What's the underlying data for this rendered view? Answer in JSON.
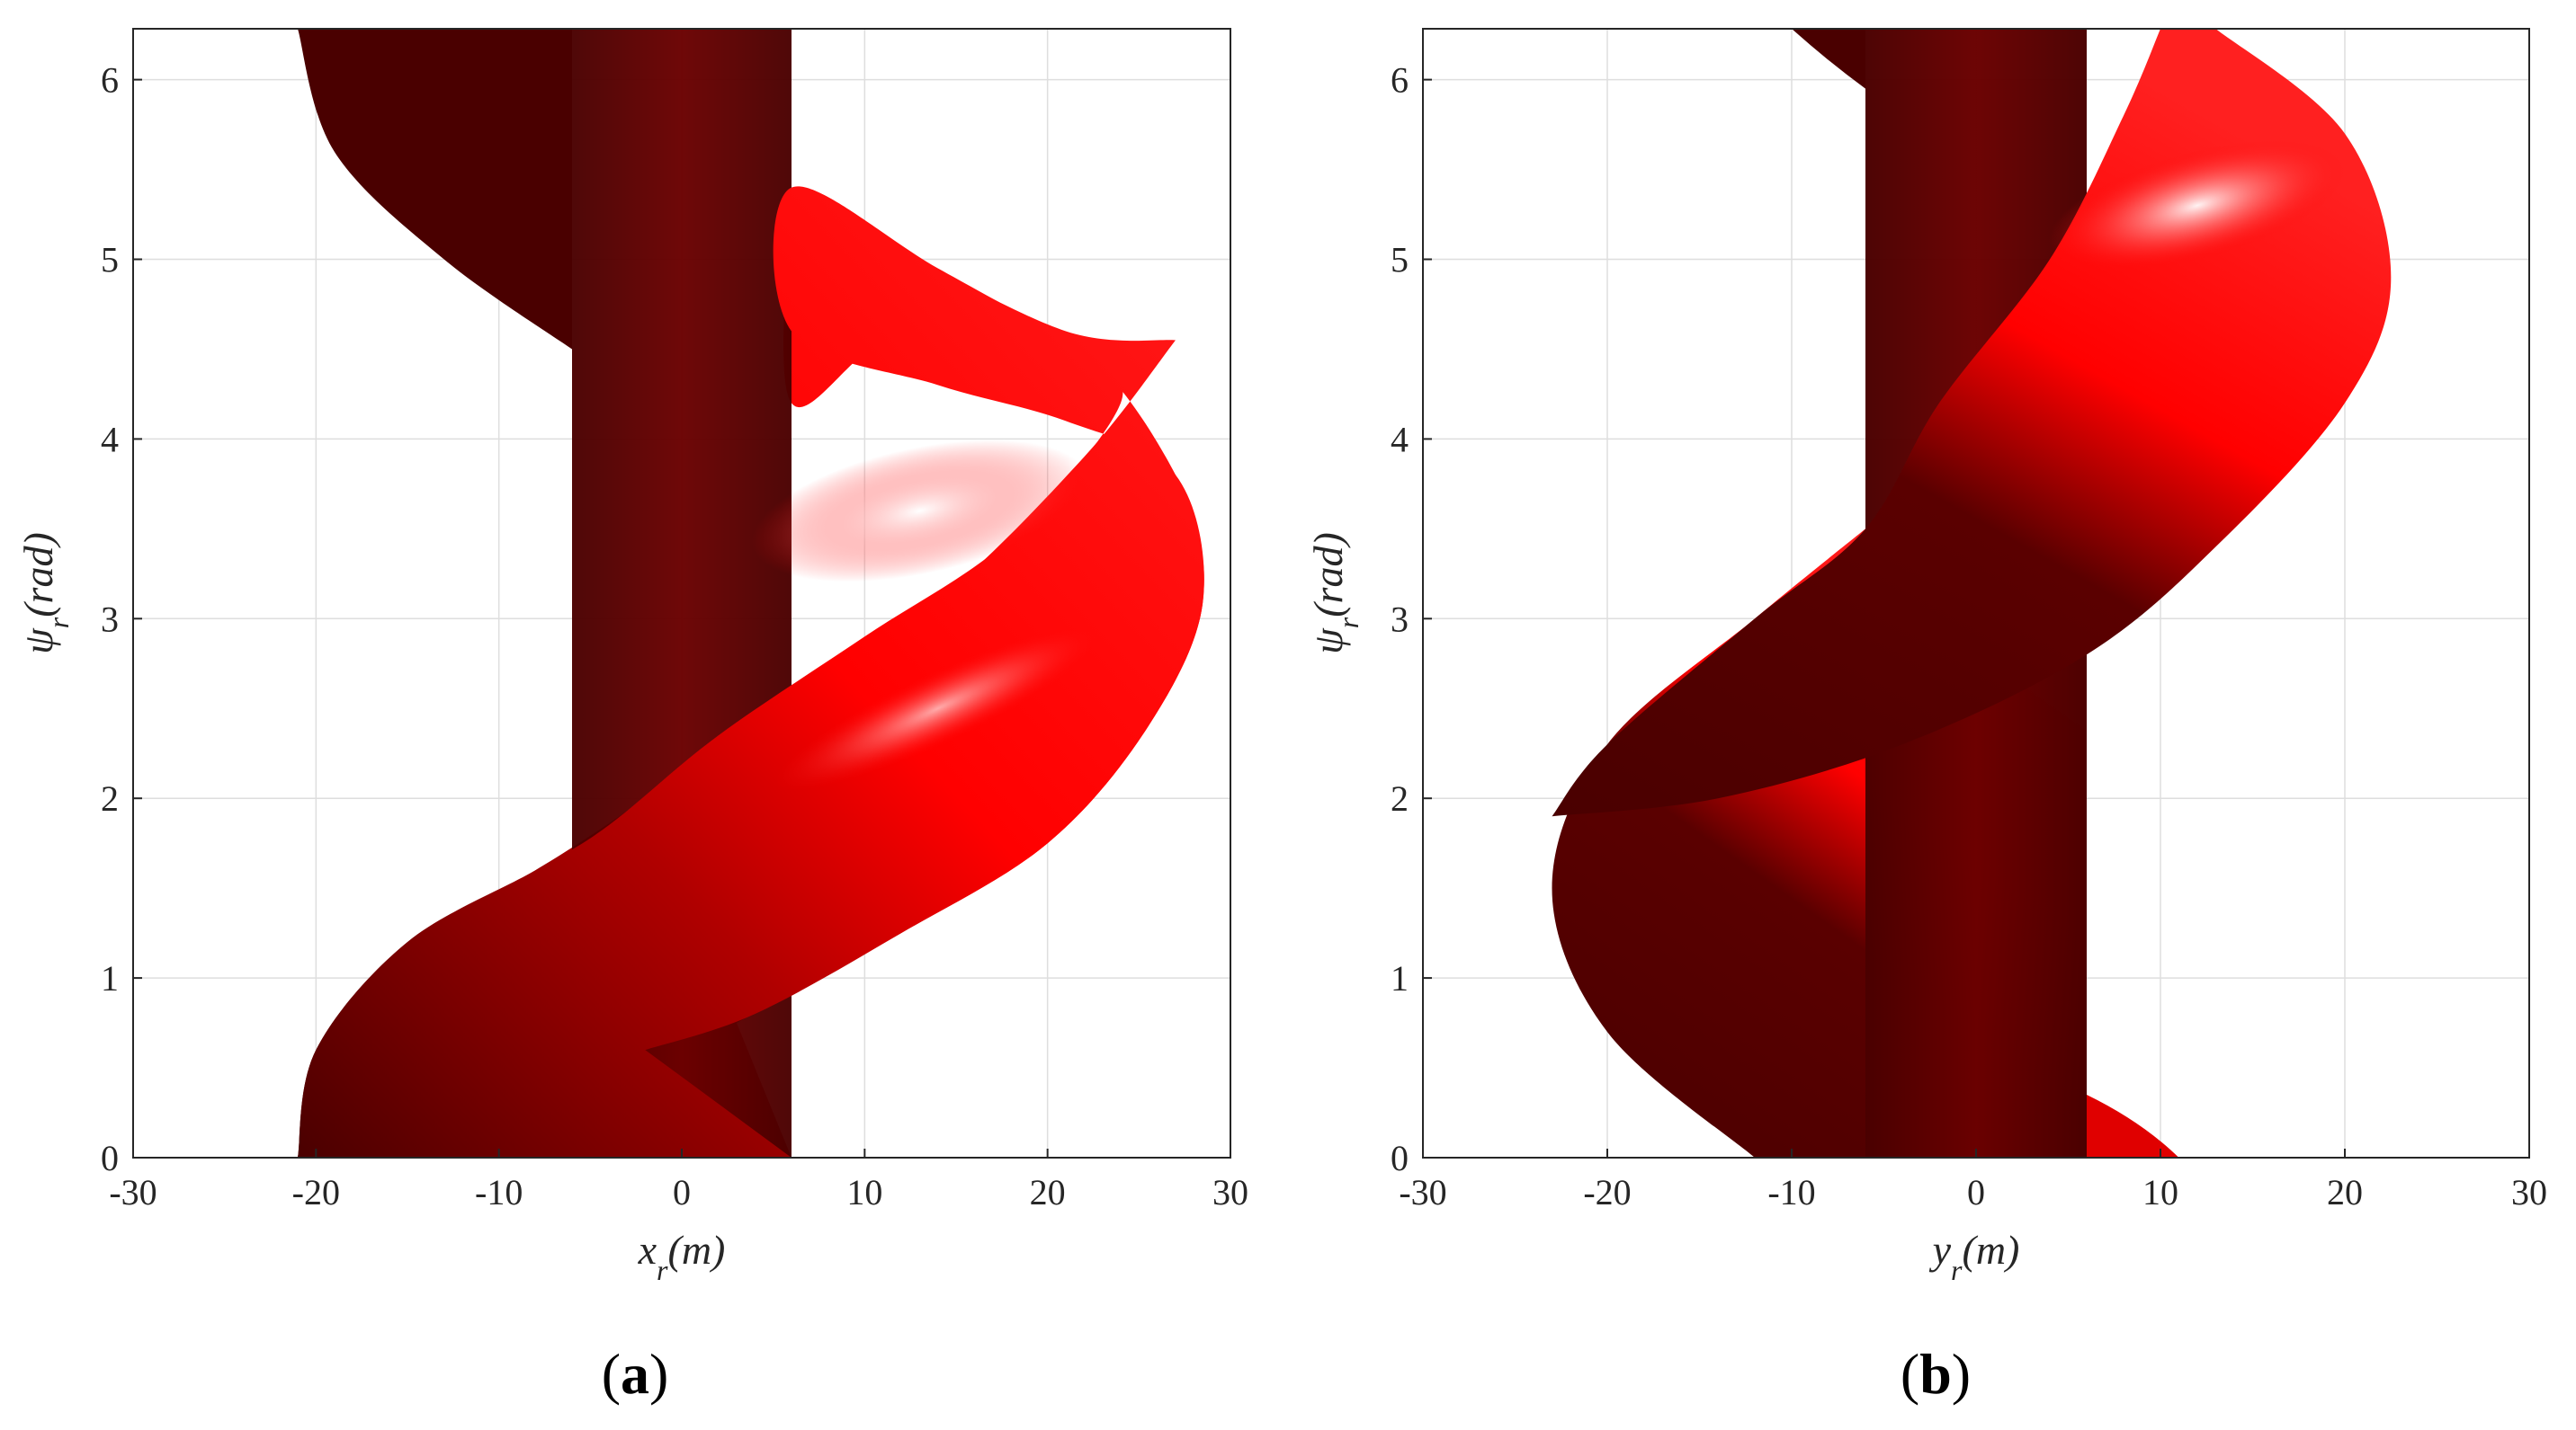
{
  "chart_data": [
    {
      "type": "area",
      "caption": "a",
      "xlabel": "x_r(m)",
      "ylabel": "ψ_r(rad)",
      "xlim": [
        -30,
        30
      ],
      "ylim": [
        0,
        6.2832
      ],
      "xticks": [
        -30,
        -20,
        -10,
        0,
        10,
        20,
        30
      ],
      "yticks": [
        0,
        1,
        2,
        3,
        4,
        5,
        6
      ],
      "grid": true,
      "colors": {
        "dark": "#4a0000",
        "mid": "#7a0000",
        "bright": "#ff0000",
        "highlight": "#ffffff"
      },
      "surface": {
        "description_kind": "swept footprint",
        "center_column": {
          "x_range": [
            -6,
            6
          ],
          "psi_range": [
            0,
            6.2832
          ]
        },
        "swept_outline": {
          "left_edge": [
            {
              "x": -21,
              "psi": 0
            },
            {
              "x": -20,
              "psi": 0.6
            },
            {
              "x": -15,
              "psi": 1.2
            },
            {
              "x": -8,
              "psi": 1.6
            },
            {
              "x": -2,
              "psi": 2.0
            },
            {
              "x": 6,
              "psi": 2.6
            },
            {
              "x": 14,
              "psi": 3.1
            },
            {
              "x": 22,
              "psi": 3.8
            },
            {
              "x": 27,
              "psi": 4.5
            }
          ],
          "right_edge": [
            {
              "x": 3,
              "psi": 0.75
            },
            {
              "x": 12,
              "psi": 1.25
            },
            {
              "x": 20,
              "psi": 1.75
            },
            {
              "x": 25.5,
              "psi": 2.4
            },
            {
              "x": 28.5,
              "psi": 3.1
            },
            {
              "x": 27,
              "psi": 3.8
            },
            {
              "x": 21,
              "psi": 4.55
            },
            {
              "x": 12,
              "psi": 5.05
            },
            {
              "x": 6,
              "psi": 5.4
            }
          ],
          "top_left_edge": [
            {
              "x": -21,
              "psi": 6.2832
            },
            {
              "x": -19,
              "psi": 5.6
            },
            {
              "x": -13,
              "psi": 5.0
            },
            {
              "x": -6,
              "psi": 4.5
            }
          ]
        }
      }
    },
    {
      "type": "area",
      "caption": "b",
      "xlabel": "y_r(m)",
      "ylabel": "ψ_r(rad)",
      "xlim": [
        -30,
        30
      ],
      "ylim": [
        0,
        6.2832
      ],
      "xticks": [
        -30,
        -20,
        -10,
        0,
        10,
        20,
        30
      ],
      "yticks": [
        0,
        1,
        2,
        3,
        4,
        5,
        6
      ],
      "grid": true,
      "colors": {
        "dark": "#4a0000",
        "mid": "#7a0000",
        "bright": "#ff0000",
        "highlight": "#ffffff"
      },
      "surface": {
        "description_kind": "swept footprint",
        "center_column": {
          "x_range": [
            -6,
            6
          ],
          "psi_range": [
            0,
            6.2832
          ]
        },
        "swept_outline": {
          "left_edge": [
            {
              "x": -12,
              "psi": 0
            },
            {
              "x": -20,
              "psi": 0.7
            },
            {
              "x": -23,
              "psi": 1.5
            },
            {
              "x": -20,
              "psi": 2.3
            },
            {
              "x": -12,
              "psi": 3.0
            },
            {
              "x": -6,
              "psi": 3.5
            }
          ],
          "right_edge": [
            {
              "x": 6,
              "psi": 2.8
            },
            {
              "x": 13,
              "psi": 3.4
            },
            {
              "x": 20,
              "psi": 4.2
            },
            {
              "x": 22.5,
              "psi": 4.9
            },
            {
              "x": 20,
              "psi": 5.7
            },
            {
              "x": 13,
              "psi": 6.2832
            }
          ],
          "bottom_right_lobe": [
            {
              "x": 6,
              "psi": 0.3
            },
            {
              "x": 11,
              "psi": 0
            }
          ],
          "top_left_lobe": [
            {
              "x": -10,
              "psi": 6.2832
            },
            {
              "x": -6,
              "psi": 5.95
            }
          ]
        }
      }
    }
  ]
}
